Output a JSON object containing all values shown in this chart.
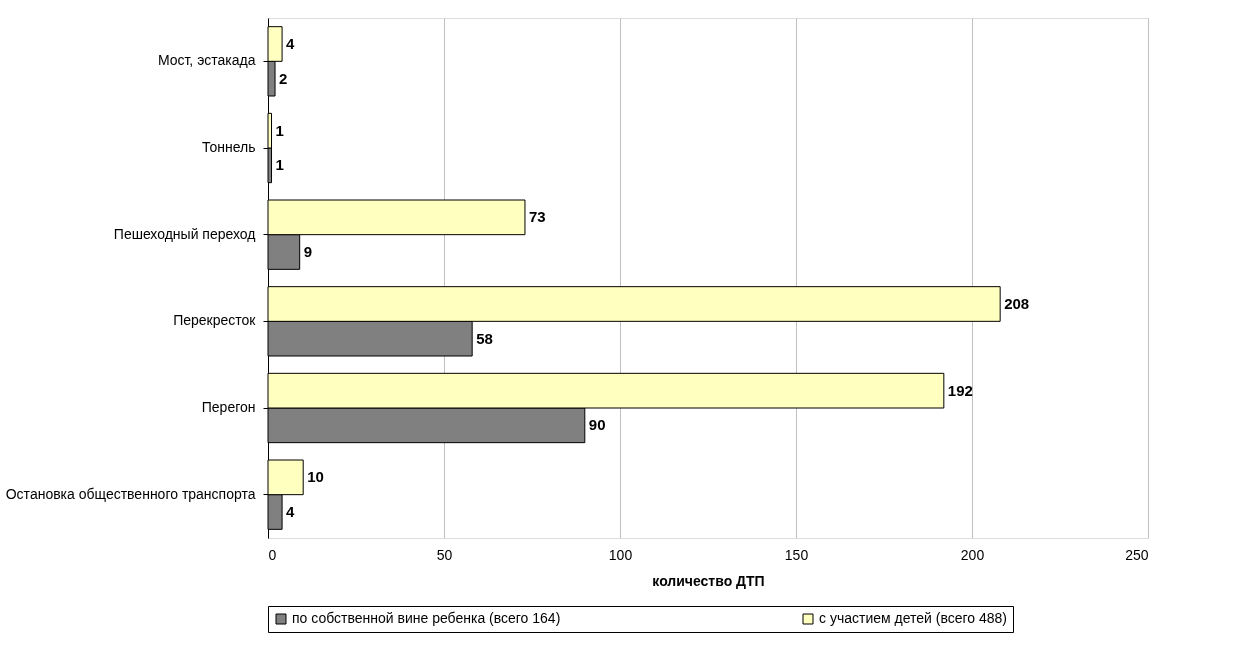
{
  "chart_data": {
    "type": "bar",
    "orientation": "horizontal",
    "xlabel": "количество ДТП",
    "categories": [
      "Мост, эстакада",
      "Тоннель",
      "Пешеходный переход",
      "Перекресток",
      "Перегон",
      "Остановка общественного транспорта"
    ],
    "series": [
      {
        "name": "по собственной вине ребенка (всего 164)",
        "color": "#808080",
        "values": [
          2,
          1,
          9,
          58,
          90,
          4
        ]
      },
      {
        "name": "с участием детей (всего 488)",
        "color": "#ffffc0",
        "values": [
          4,
          1,
          73,
          208,
          192,
          10
        ]
      }
    ],
    "xlim": [
      0,
      250
    ],
    "xticks": [
      0,
      50,
      100,
      150,
      200,
      250
    ],
    "grid": "x",
    "legend": "bottom",
    "data_labels": true
  }
}
